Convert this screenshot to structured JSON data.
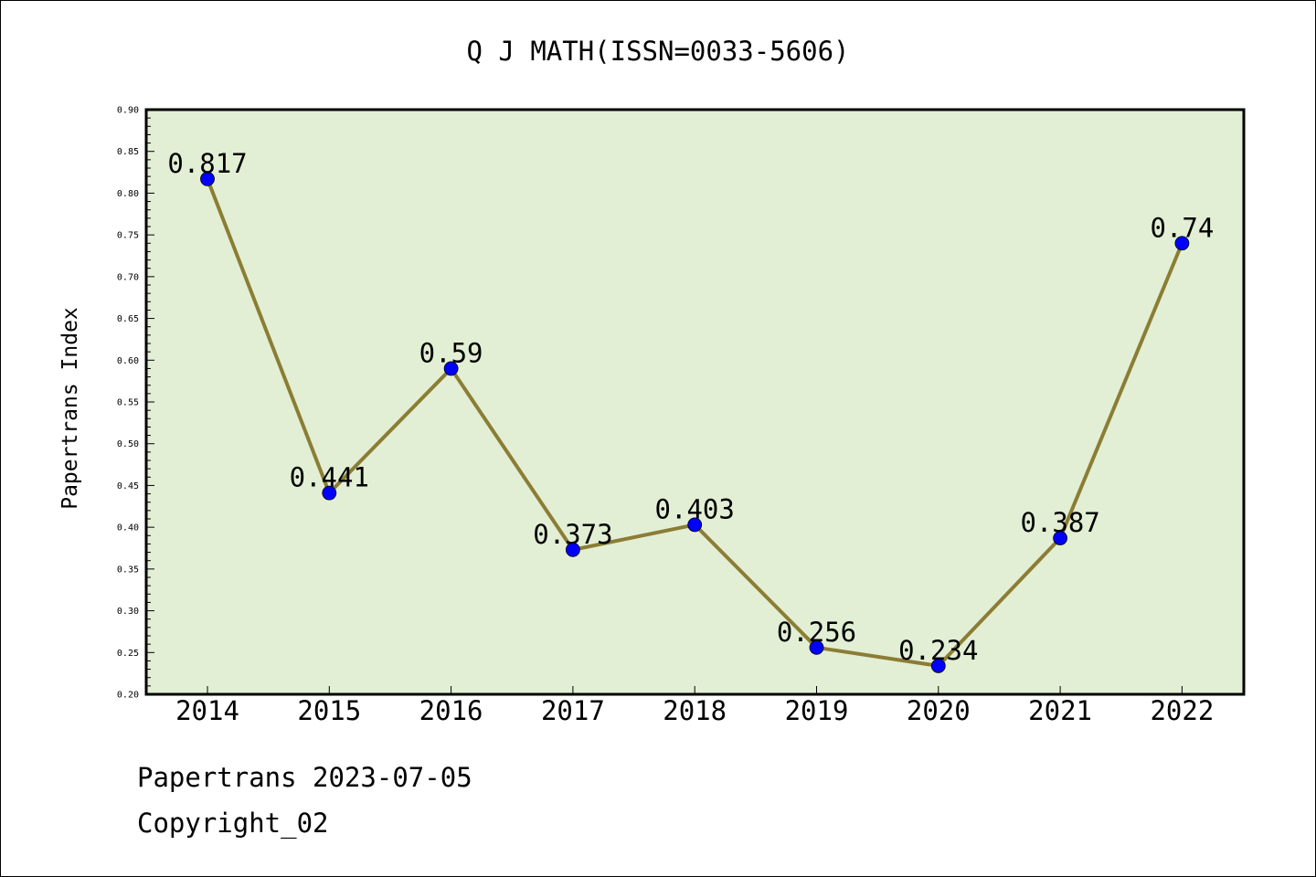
{
  "chart_data": {
    "type": "line",
    "title": "Q J MATH(ISSN=0033-5606)",
    "xlabel": "",
    "ylabel": "Papertrans Index",
    "categories": [
      "2014",
      "2015",
      "2016",
      "2017",
      "2018",
      "2019",
      "2020",
      "2021",
      "2022"
    ],
    "series": [
      {
        "values": [
          0.817,
          0.441,
          0.59,
          0.373,
          0.403,
          0.256,
          0.234,
          0.387,
          0.74
        ],
        "labels": [
          "0.817",
          "0.441",
          "0.59",
          "0.373",
          "0.403",
          "0.256",
          "0.234",
          "0.387",
          "0.74"
        ]
      }
    ],
    "ylim": [
      0.2,
      0.9
    ],
    "yticks": [
      "0.20",
      "0.25",
      "0.30",
      "0.35",
      "0.40",
      "0.45",
      "0.50",
      "0.55",
      "0.60",
      "0.65",
      "0.70",
      "0.75",
      "0.80",
      "0.85",
      "0.90"
    ],
    "grid": false,
    "legend": "none",
    "colors": {
      "plot_background": "#e2efd4",
      "line": "#8b7d35",
      "marker": "#0000ff"
    }
  },
  "footer": {
    "line1": "Papertrans 2023-07-05",
    "line2": "Copyright_02"
  }
}
